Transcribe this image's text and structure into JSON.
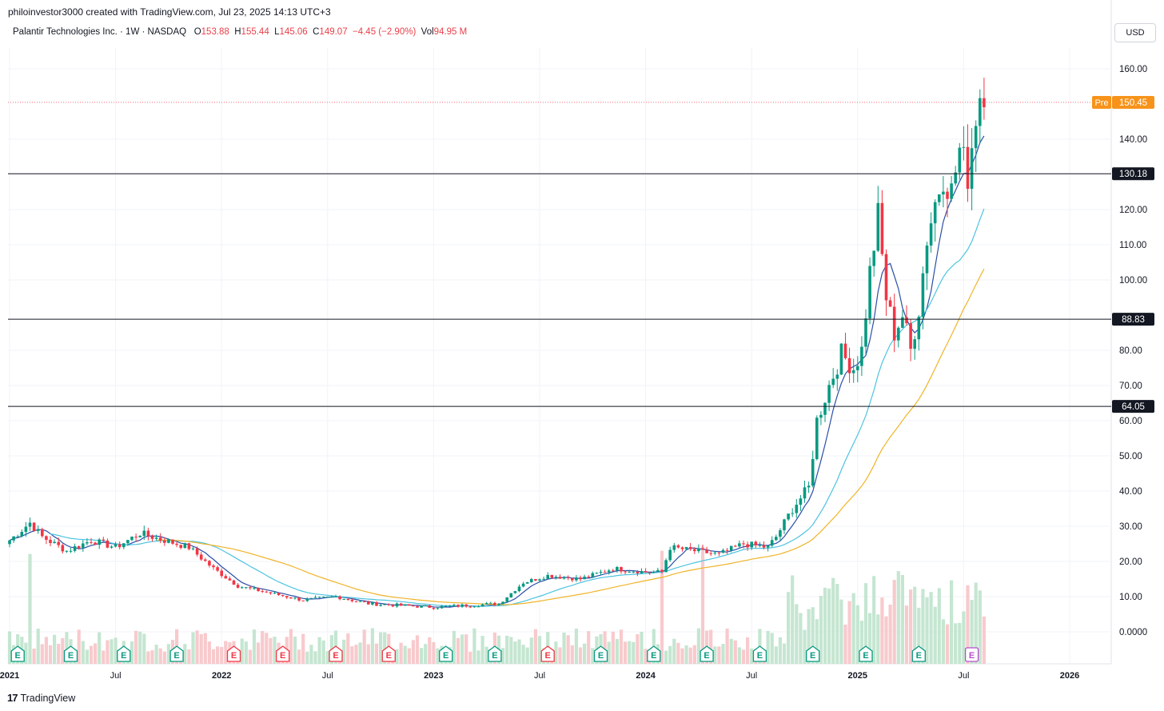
{
  "header": {
    "credit": "philoinvestor3000 created with TradingView.com, Jul 23, 2025 14:13 UTC+3"
  },
  "legend": {
    "symbol": "Palantir Technologies Inc. · 1W · NASDAQ",
    "o_label": "O",
    "o_value": "153.88",
    "h_label": "H",
    "h_value": "155.44",
    "l_label": "L",
    "l_value": "145.06",
    "c_label": "C",
    "c_value": "149.07",
    "change": "−4.45 (−2.90%)",
    "vol_label": "Vol",
    "vol_value": "94.95 M"
  },
  "currency_button": "USD",
  "footer": {
    "brand": "TradingView"
  },
  "colors": {
    "up": "#089981",
    "down": "#f23645",
    "ma_fast": "#2a4fa8",
    "ma_mid": "#4dc4e0",
    "ma_slow": "#f0b429",
    "pre": "#f7931a"
  },
  "chart_data": {
    "type": "candlestick",
    "y_ticks": [
      "160.00",
      "140.00",
      "130.18",
      "120.00",
      "110.00",
      "100.00",
      "88.83",
      "80.00",
      "70.00",
      "64.05",
      "60.00",
      "50.00",
      "40.00",
      "30.00",
      "20.00",
      "10.00",
      "0.0000"
    ],
    "x_ticks": [
      "2021",
      "Jul",
      "2022",
      "Jul",
      "2023",
      "Jul",
      "2024",
      "Jul",
      "2025",
      "Jul",
      "2026"
    ],
    "ylim": [
      -9,
      173
    ],
    "horizontal_levels": [
      {
        "value": 130.18,
        "label": "130.18"
      },
      {
        "value": 88.83,
        "label": "88.83"
      },
      {
        "value": 64.05,
        "label": "64.05"
      }
    ],
    "premarket": {
      "label": "Pre",
      "value": 150.45,
      "text": "150.45"
    },
    "earnings_markers": [
      {
        "week": 2,
        "kind": "up",
        "label": "E"
      },
      {
        "week": 15,
        "kind": "up",
        "label": "E"
      },
      {
        "week": 28,
        "kind": "up",
        "label": "E"
      },
      {
        "week": 41,
        "kind": "up",
        "label": "E"
      },
      {
        "week": 55,
        "kind": "down",
        "label": "E"
      },
      {
        "week": 67,
        "kind": "down",
        "label": "E"
      },
      {
        "week": 80,
        "kind": "down",
        "label": "E"
      },
      {
        "week": 93,
        "kind": "down",
        "label": "E"
      },
      {
        "week": 107,
        "kind": "up",
        "label": "E"
      },
      {
        "week": 119,
        "kind": "up",
        "label": "E"
      },
      {
        "week": 132,
        "kind": "down",
        "label": "E"
      },
      {
        "week": 145,
        "kind": "up",
        "label": "E"
      },
      {
        "week": 158,
        "kind": "up",
        "label": "E"
      },
      {
        "week": 171,
        "kind": "up",
        "label": "E"
      },
      {
        "week": 184,
        "kind": "up",
        "label": "E"
      },
      {
        "week": 197,
        "kind": "up",
        "label": "E"
      },
      {
        "week": 210,
        "kind": "up",
        "label": "E"
      },
      {
        "week": 223,
        "kind": "up",
        "label": "E"
      },
      {
        "week": 236,
        "kind": "upcoming",
        "label": "E"
      }
    ],
    "price_path": [
      {
        "week": 0,
        "close": 26
      },
      {
        "week": 5,
        "close": 31
      },
      {
        "week": 8,
        "close": 27
      },
      {
        "week": 14,
        "close": 23
      },
      {
        "week": 20,
        "close": 26
      },
      {
        "week": 26,
        "close": 24
      },
      {
        "week": 32,
        "close": 28
      },
      {
        "week": 38,
        "close": 26
      },
      {
        "week": 44,
        "close": 24
      },
      {
        "week": 50,
        "close": 18
      },
      {
        "week": 56,
        "close": 13
      },
      {
        "week": 64,
        "close": 11
      },
      {
        "week": 72,
        "close": 9
      },
      {
        "week": 80,
        "close": 10
      },
      {
        "week": 88,
        "close": 8
      },
      {
        "week": 96,
        "close": 7.5
      },
      {
        "week": 104,
        "close": 7
      },
      {
        "week": 112,
        "close": 7.5
      },
      {
        "week": 120,
        "close": 8
      },
      {
        "week": 126,
        "close": 14
      },
      {
        "week": 132,
        "close": 16
      },
      {
        "week": 140,
        "close": 15
      },
      {
        "week": 148,
        "close": 18
      },
      {
        "week": 156,
        "close": 17
      },
      {
        "week": 160,
        "close": 17
      },
      {
        "week": 162,
        "close": 24
      },
      {
        "week": 168,
        "close": 23
      },
      {
        "week": 174,
        "close": 22
      },
      {
        "week": 180,
        "close": 25
      },
      {
        "week": 186,
        "close": 24
      },
      {
        "week": 188,
        "close": 27
      },
      {
        "week": 192,
        "close": 35
      },
      {
        "week": 196,
        "close": 41
      },
      {
        "week": 198,
        "close": 60
      },
      {
        "week": 201,
        "close": 70
      },
      {
        "week": 204,
        "close": 79
      },
      {
        "week": 207,
        "close": 75
      },
      {
        "week": 209,
        "close": 80
      },
      {
        "week": 211,
        "close": 102
      },
      {
        "week": 213,
        "close": 118
      },
      {
        "week": 215,
        "close": 95
      },
      {
        "week": 217,
        "close": 85
      },
      {
        "week": 219,
        "close": 90
      },
      {
        "week": 221,
        "close": 80
      },
      {
        "week": 223,
        "close": 92
      },
      {
        "week": 225,
        "close": 112
      },
      {
        "week": 227,
        "close": 122
      },
      {
        "week": 229,
        "close": 130
      },
      {
        "week": 231,
        "close": 125
      },
      {
        "week": 233,
        "close": 137
      },
      {
        "week": 235,
        "close": 130
      },
      {
        "week": 237,
        "close": 147
      },
      {
        "week": 238,
        "close": 153
      },
      {
        "week": 239,
        "close": 149.07
      }
    ]
  }
}
